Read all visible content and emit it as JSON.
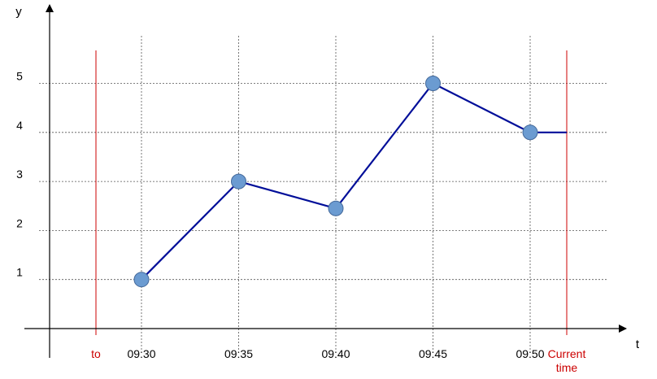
{
  "chart_data": {
    "type": "line",
    "title": "",
    "xlabel": "t",
    "ylabel": "y",
    "x_ticks": [
      "09:30",
      "09:35",
      "09:40",
      "09:45",
      "09:50"
    ],
    "y_ticks": [
      1,
      2,
      3,
      4,
      5
    ],
    "ylim": [
      0,
      5
    ],
    "grid": true,
    "series": [
      {
        "color": "#000e99",
        "marker_color": "#6b9bd1",
        "points": [
          {
            "x": "09:30",
            "y": 1.0
          },
          {
            "x": "09:35",
            "y": 3.0
          },
          {
            "x": "09:40",
            "y": 2.45
          },
          {
            "x": "09:45",
            "y": 5.0
          },
          {
            "x": "09:50",
            "y": 4.0
          }
        ],
        "extends_to": "current_time"
      }
    ],
    "reference_lines": [
      {
        "id": "to",
        "label": [
          "to"
        ],
        "position": "before 09:30",
        "color": "#cc0000"
      },
      {
        "id": "current_time",
        "label": [
          "Current",
          "time"
        ],
        "position": "after 09:50",
        "color": "#cc0000"
      }
    ]
  }
}
